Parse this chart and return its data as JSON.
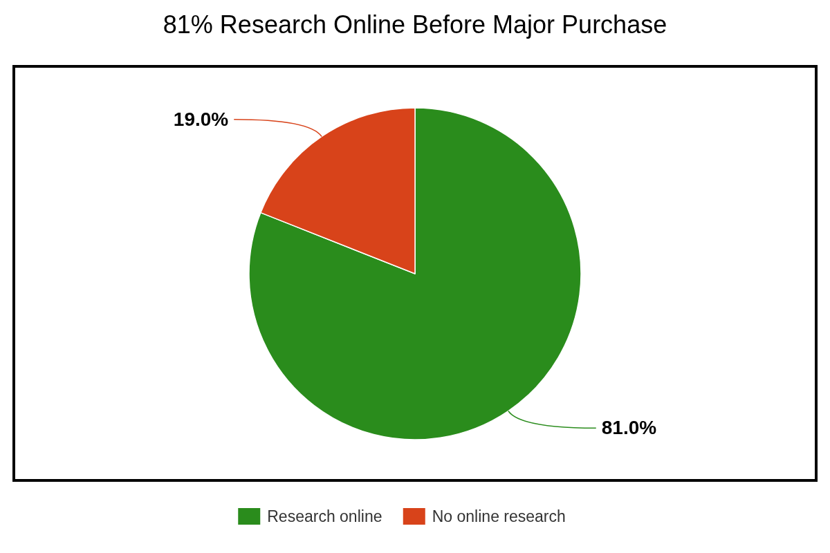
{
  "chart_data": {
    "type": "pie",
    "title": "81% Research Online Before Major Purchase",
    "categories": [
      "Research online",
      "No online research"
    ],
    "values": [
      81,
      19
    ],
    "colors": [
      "#2a8c1c",
      "#d8431a"
    ],
    "value_labels": [
      "81.0%",
      "19.0%"
    ],
    "legend": "bottom"
  }
}
